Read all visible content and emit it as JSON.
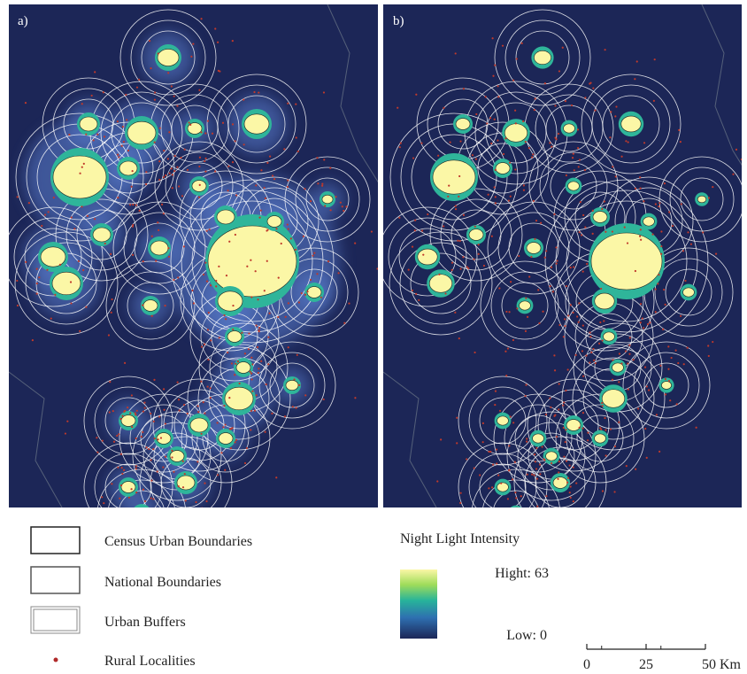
{
  "panels": [
    {
      "label": "a)"
    },
    {
      "label": "b)"
    }
  ],
  "legend": {
    "items": [
      {
        "label": "Census Urban Boundaries"
      },
      {
        "label": "National Boundaries"
      },
      {
        "label": "Urban Buffers"
      },
      {
        "label": "Rural Localities"
      }
    ],
    "title": "Night Light Intensity",
    "colorbar": {
      "max": {
        "value": 63,
        "label": "Hight: 63"
      },
      "min": {
        "value": 0,
        "label": "Low: 0"
      }
    }
  },
  "scale_bar": {
    "ticks": [
      {
        "value": 0,
        "label": "0"
      },
      {
        "value": 25,
        "label": "25"
      },
      {
        "value": 50,
        "label": "50 Km"
      }
    ]
  }
}
